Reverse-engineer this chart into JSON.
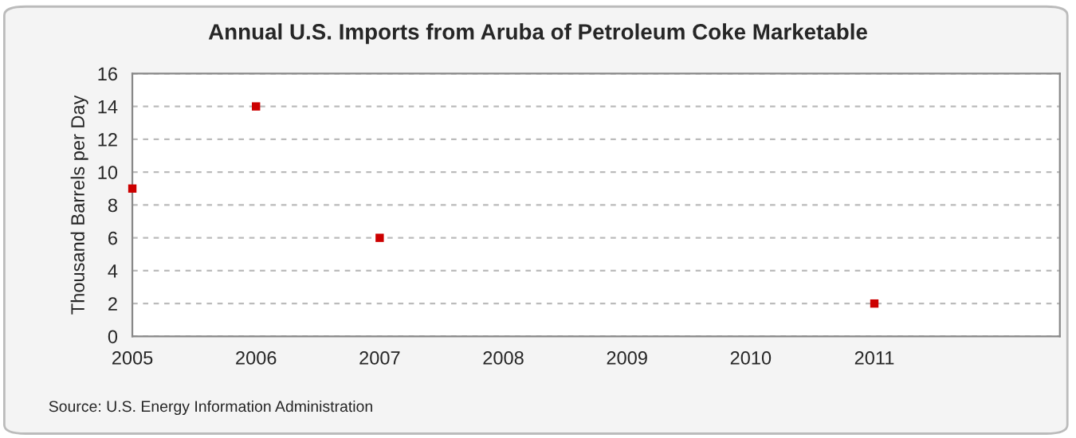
{
  "chart_data": {
    "type": "scatter",
    "title": "Annual U.S. Imports from Aruba of Petroleum Coke Marketable",
    "ylabel": "Thousand Barrels per Day",
    "x": [
      2005,
      2006,
      2007,
      2011
    ],
    "series": [
      {
        "color": "#cc0000",
        "values": [
          9,
          14,
          6,
          2
        ]
      }
    ],
    "xlim": [
      2005,
      2012.5
    ],
    "xticks": [
      2005,
      2006,
      2007,
      2008,
      2009,
      2010,
      2011
    ],
    "ylim": [
      0,
      16
    ],
    "yticks": [
      0,
      2,
      4,
      6,
      8,
      10,
      12,
      14,
      16
    ],
    "grid": "y",
    "marker": "square",
    "annotations": [
      "Source: U.S. Energy Information Administration"
    ]
  }
}
